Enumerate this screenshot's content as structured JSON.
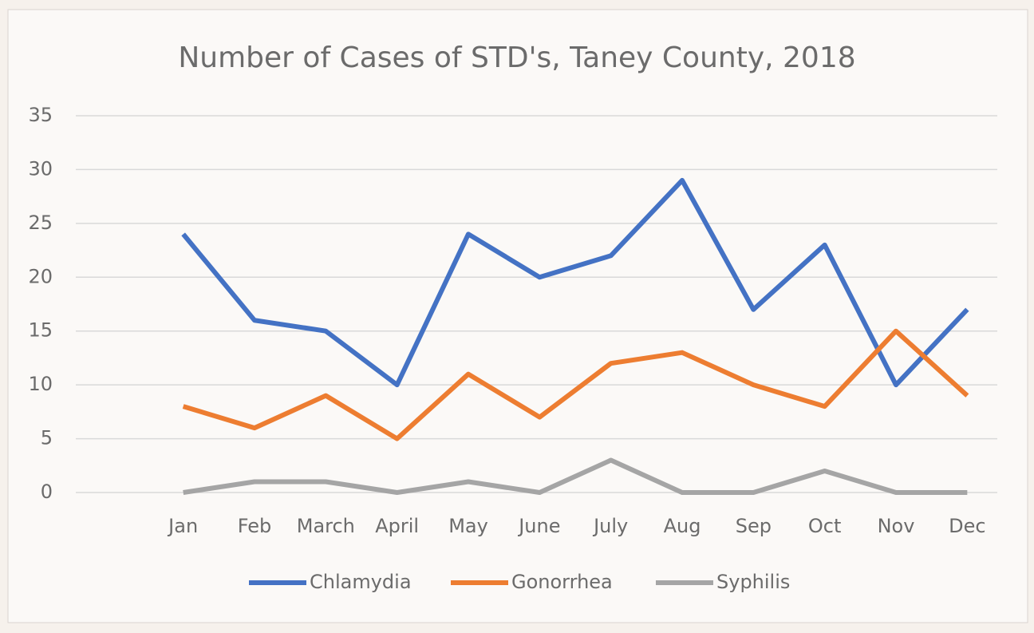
{
  "chart_data": {
    "type": "line",
    "title": "Number of Cases of STD's, Taney County, 2018",
    "categories": [
      "Jan",
      "Feb",
      "March",
      "April",
      "May",
      "June",
      "July",
      "Aug",
      "Sep",
      "Oct",
      "Nov",
      "Dec"
    ],
    "series": [
      {
        "name": "Chlamydia",
        "color": "#4472c4",
        "values": [
          24,
          16,
          15,
          10,
          24,
          20,
          22,
          29,
          17,
          23,
          10,
          17
        ]
      },
      {
        "name": "Gonorrhea",
        "color": "#ed7d31",
        "values": [
          8,
          6,
          9,
          5,
          11,
          7,
          12,
          13,
          10,
          8,
          15,
          9
        ]
      },
      {
        "name": "Syphilis",
        "color": "#a5a5a5",
        "values": [
          0,
          1,
          1,
          0,
          1,
          0,
          3,
          0,
          0,
          2,
          0,
          0
        ]
      }
    ],
    "ylim": [
      0,
      35
    ],
    "yticks": [
      0,
      5,
      10,
      15,
      20,
      25,
      30,
      35
    ],
    "grid": true,
    "legend": "bottom"
  }
}
